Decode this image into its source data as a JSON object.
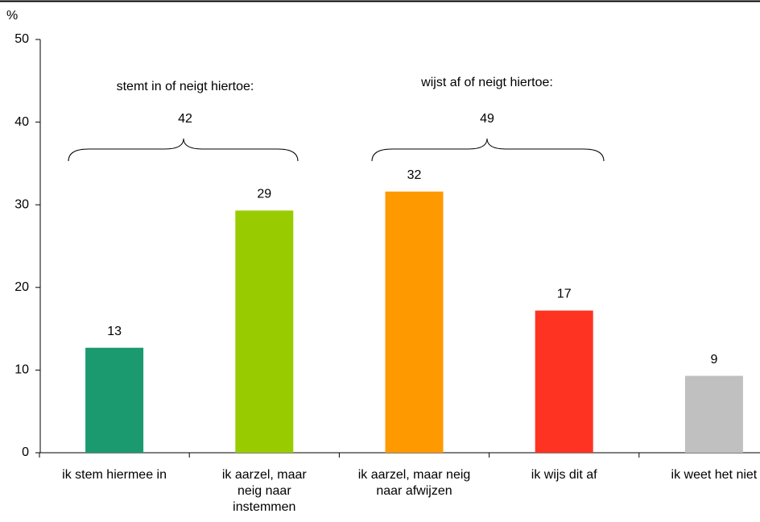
{
  "chart_data": {
    "type": "bar",
    "y_label": "%",
    "categories": [
      "ik stem hiermee in",
      "ik aarzel, maar neig naar instemmen",
      "ik aarzel, maar neig naar afwijzen",
      "ik wijs dit af",
      "ik weet het niet"
    ],
    "values": [
      12.7,
      29.3,
      31.6,
      17.2,
      9.3
    ],
    "value_labels": [
      "13",
      "29",
      "32",
      "17",
      "9"
    ],
    "colors": [
      "#1a9a6e",
      "#99cc00",
      "#ff9900",
      "#ff3322",
      "#c0c0c0"
    ],
    "ylim": [
      0,
      50
    ],
    "yticks": [
      0,
      10,
      20,
      30,
      40,
      50
    ],
    "annotations": [
      {
        "text": "stemt in of neigt hiertoe:",
        "total": "42"
      },
      {
        "text": "wijst af of neigt hiertoe:",
        "total": "49"
      }
    ]
  }
}
